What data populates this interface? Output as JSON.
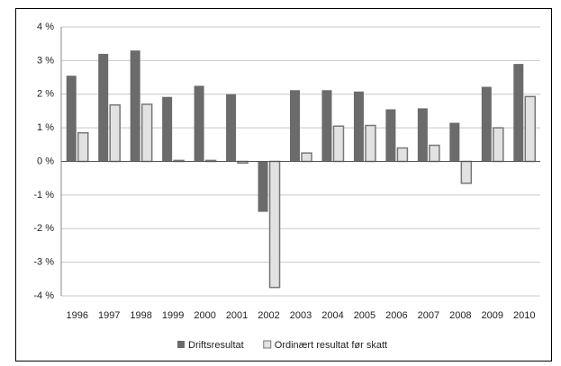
{
  "chart_data": {
    "type": "bar",
    "categories": [
      "1996",
      "1997",
      "1998",
      "1999",
      "2000",
      "2001",
      "2002",
      "2003",
      "2004",
      "2005",
      "2006",
      "2007",
      "2008",
      "2009",
      "2010"
    ],
    "series": [
      {
        "name": "Driftsresultat",
        "color": "#6b6b6b",
        "values": [
          2.55,
          3.2,
          3.3,
          1.92,
          2.25,
          2.0,
          -1.5,
          2.12,
          2.12,
          2.08,
          1.55,
          1.58,
          1.15,
          2.22,
          2.9
        ]
      },
      {
        "name": "Ordinært resultat før skatt",
        "color": "#e2e2e2",
        "values": [
          0.85,
          1.68,
          1.7,
          0.03,
          0.03,
          -0.05,
          -3.75,
          0.25,
          1.05,
          1.07,
          0.4,
          0.48,
          -0.65,
          1.0,
          1.93
        ]
      }
    ],
    "ylim": [
      -4,
      4
    ],
    "yticks": [
      {
        "value": -4,
        "label": "-4 %"
      },
      {
        "value": -3,
        "label": "-3 %"
      },
      {
        "value": -2,
        "label": "-2 %"
      },
      {
        "value": -1,
        "label": "-1 %"
      },
      {
        "value": 0,
        "label": "0 %"
      },
      {
        "value": 1,
        "label": "1 %"
      },
      {
        "value": 2,
        "label": "2 %"
      },
      {
        "value": 3,
        "label": "3 %"
      },
      {
        "value": 4,
        "label": "4 %"
      }
    ],
    "grid": true,
    "legend": "bottom"
  }
}
